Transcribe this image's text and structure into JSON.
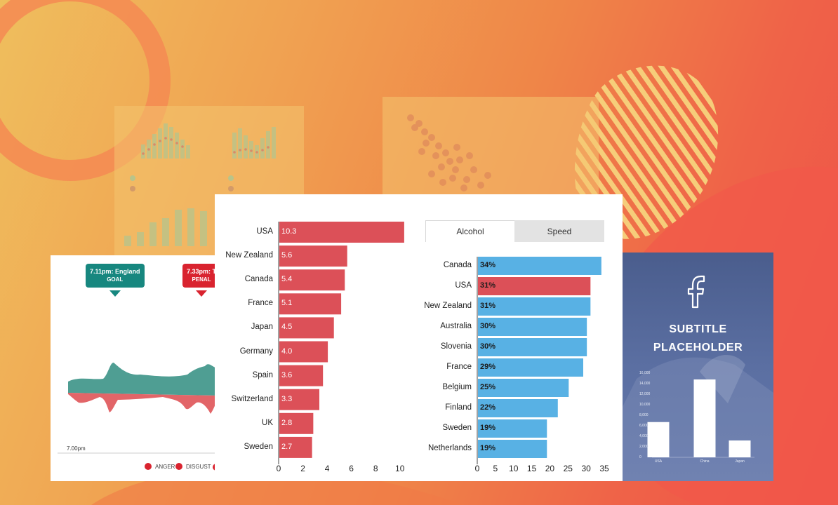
{
  "stream_card": {
    "callout_1": {
      "time": "7.11pm: England",
      "event": "GOAL",
      "color": "#17877f"
    },
    "callout_2": {
      "time": "7.33pm: T",
      "event": "PENAL",
      "color": "#d9232f"
    },
    "x_tick": "7.00pm",
    "legend": [
      "ANGER",
      "DISGUST"
    ]
  },
  "chart_data": [
    {
      "type": "bar",
      "orientation": "horizontal",
      "categories": [
        "USA",
        "New Zealand",
        "Canada",
        "France",
        "Japan",
        "Germany",
        "Spain",
        "Switzerland",
        "UK",
        "Sweden"
      ],
      "values": [
        10.3,
        5.6,
        5.4,
        5.1,
        4.5,
        4.0,
        3.6,
        3.3,
        2.8,
        2.7
      ],
      "value_labels": [
        "10.3",
        "5.6",
        "5.4",
        "5.1",
        "4.5",
        "4.0",
        "3.6",
        "3.3",
        "2.8",
        "2.7"
      ],
      "xlim": [
        0,
        11
      ],
      "xticks": [
        "0",
        "2",
        "4",
        "6",
        "8",
        "10"
      ],
      "color": "#dc5058"
    },
    {
      "type": "bar",
      "orientation": "horizontal",
      "tabs": [
        "Alcohol",
        "Speed"
      ],
      "active_tab": "Alcohol",
      "categories": [
        "Canada",
        "USA",
        "New Zealand",
        "Australia",
        "Slovenia",
        "France",
        "Belgium",
        "Finland",
        "Sweden",
        "Netherlands"
      ],
      "values": [
        34,
        31,
        31,
        30,
        30,
        29,
        25,
        22,
        19,
        19
      ],
      "value_labels": [
        "34%",
        "31%",
        "31%",
        "30%",
        "30%",
        "29%",
        "25%",
        "22%",
        "19%",
        "19%"
      ],
      "highlight": "USA",
      "xlim": [
        0,
        36
      ],
      "xticks": [
        "0",
        "5",
        "10",
        "15",
        "20",
        "25",
        "30",
        "35"
      ],
      "color": "#58b1e4",
      "highlight_color": "#dc5058"
    },
    {
      "type": "bar",
      "categories": [
        "USA",
        "China",
        "Japan"
      ],
      "values": [
        6700,
        14800,
        3200
      ],
      "ylim": [
        0,
        16000
      ],
      "yticks": [
        "16,000",
        "14,000",
        "12,000",
        "10,000",
        "8,000",
        "6,000",
        "4,000",
        "2,000",
        "0"
      ]
    }
  ],
  "fb_card": {
    "icon": "facebook-icon",
    "subtitle_line1": "SUBTITLE",
    "subtitle_line2": "PLACEHOLDER"
  },
  "colors": {
    "teal": "#17877f",
    "red": "#d9232f",
    "bar_red": "#dc5058",
    "bar_blue": "#58b1e4"
  }
}
